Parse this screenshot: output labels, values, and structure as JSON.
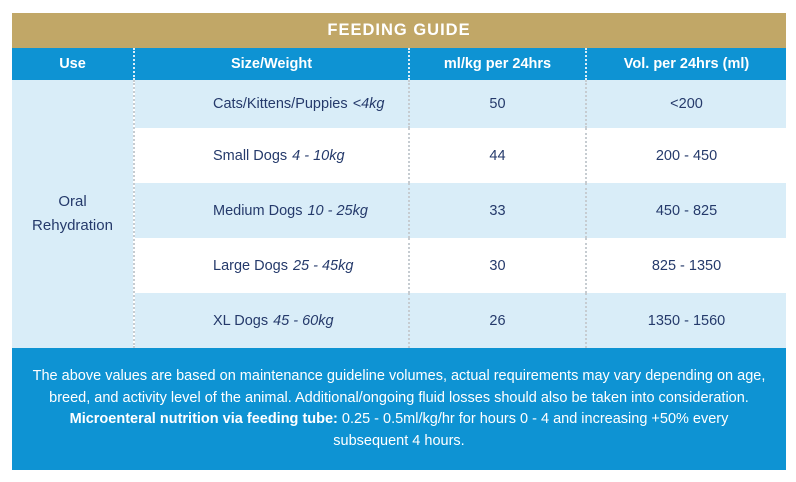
{
  "title": "FEEDING GUIDE",
  "colors": {
    "title_bar_gold": "#C1A767",
    "header_blue": "#0E93D3",
    "row_light_blue": "#D9EDF8",
    "text_navy": "#253A6B",
    "footer_blue": "#0E93D3"
  },
  "table": {
    "headers": {
      "use": "Use",
      "size_weight": "Size/Weight",
      "ml_per_kg": "ml/kg per 24hrs",
      "vol": "Vol. per 24hrs (ml)"
    },
    "use_label": {
      "line1": "Oral",
      "line2": "Rehydration"
    },
    "rows": [
      {
        "size": "Cats/Kittens/Puppies",
        "weight_range": "<4kg",
        "ml_per_kg": "50",
        "vol": "<200"
      },
      {
        "size": "Small Dogs",
        "weight_range": "4 - 10kg",
        "ml_per_kg": "44",
        "vol": "200 - 450"
      },
      {
        "size": "Medium Dogs",
        "weight_range": "10 - 25kg",
        "ml_per_kg": "33",
        "vol": "450 - 825"
      },
      {
        "size": "Large Dogs",
        "weight_range": "25 - 45kg",
        "ml_per_kg": "30",
        "vol": "825 - 1350"
      },
      {
        "size": "XL Dogs",
        "weight_range": "45 - 60kg",
        "ml_per_kg": "26",
        "vol": "1350 - 1560"
      }
    ]
  },
  "footer": {
    "line1": "The above values are based on maintenance guideline volumes, actual requirements may vary depending on age,",
    "line2": "breed, and activity level of the animal. Additional/ongoing fluid losses should also be taken into consideration.",
    "line3_bold": "Microenteral nutrition via feeding tube:",
    "line3_rest": " 0.25 - 0.5ml/kg/hr for hours 0 - 4 and increasing +50% every",
    "line4": "subsequent 4 hours."
  }
}
